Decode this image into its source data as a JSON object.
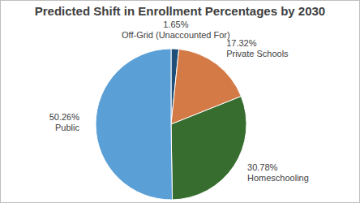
{
  "chart_data": {
    "type": "pie",
    "title": "Predicted Shift in Enrollment Percentages by 2030",
    "categories": [
      "Off-Grid (Unaccounted For)",
      "Private Schools",
      "Homeschooling",
      "Public"
    ],
    "values": [
      1.65,
      17.32,
      30.78,
      50.26
    ],
    "value_labels": [
      "1.65%",
      "17.32%",
      "30.78%",
      "50.26%"
    ],
    "colors": [
      "#1f4e79",
      "#d47a46",
      "#376d2f",
      "#5a9fd6"
    ],
    "data_labels": true
  }
}
